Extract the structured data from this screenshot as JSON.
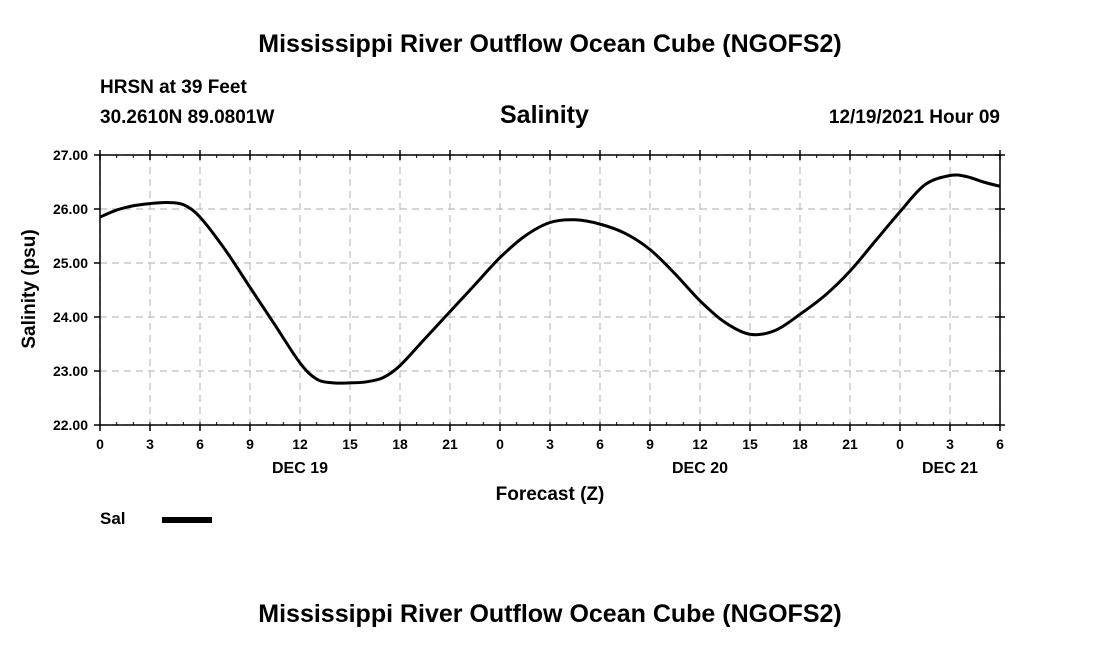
{
  "page": {
    "title_top": "Mississippi River Outflow Ocean Cube (NGOFS2)",
    "title_bottom": "Mississippi River Outflow Ocean Cube (NGOFS2)",
    "station": "HRSN at 39 Feet",
    "location": "30.2610N  89.0801W",
    "datetime": "12/19/2021 Hour 09"
  },
  "chart_data": {
    "type": "line",
    "title": "Salinity",
    "xlabel": "Forecast (Z)",
    "ylabel": "Salinity (psu)",
    "ylim": [
      22.0,
      27.0
    ],
    "xlim": [
      0,
      54
    ],
    "yticks": [
      "22.00",
      "23.00",
      "24.00",
      "25.00",
      "26.00",
      "27.00"
    ],
    "xticks": [
      "0",
      "3",
      "6",
      "9",
      "12",
      "15",
      "18",
      "21",
      "0",
      "3",
      "6",
      "9",
      "12",
      "15",
      "18",
      "21",
      "0",
      "3",
      "6"
    ],
    "day_labels": [
      {
        "hour": 12,
        "label": "DEC 19"
      },
      {
        "hour": 36,
        "label": "DEC 20"
      },
      {
        "hour": 51,
        "label": "DEC 21"
      }
    ],
    "grid": true,
    "legend_placement": "bottom-left",
    "series": [
      {
        "name": "Sal",
        "color": "#000000",
        "x": [
          0,
          1,
          2,
          3,
          4,
          5,
          6,
          7.5,
          9,
          10.5,
          12,
          13,
          14,
          15,
          16,
          17,
          18,
          19.5,
          21,
          22.5,
          24,
          25.5,
          27,
          28.5,
          30,
          31.5,
          33,
          34.5,
          36,
          37.5,
          39,
          40.5,
          42,
          43.5,
          45,
          46.5,
          48,
          49.5,
          51,
          52,
          53,
          54
        ],
        "values": [
          25.85,
          25.98,
          26.06,
          26.1,
          26.12,
          26.08,
          25.85,
          25.25,
          24.55,
          23.85,
          23.15,
          22.85,
          22.78,
          22.78,
          22.8,
          22.88,
          23.1,
          23.6,
          24.1,
          24.6,
          25.1,
          25.5,
          25.75,
          25.8,
          25.72,
          25.55,
          25.25,
          24.8,
          24.3,
          23.9,
          23.68,
          23.75,
          24.05,
          24.4,
          24.85,
          25.4,
          25.95,
          26.45,
          26.62,
          26.6,
          26.5,
          26.42
        ]
      }
    ]
  }
}
